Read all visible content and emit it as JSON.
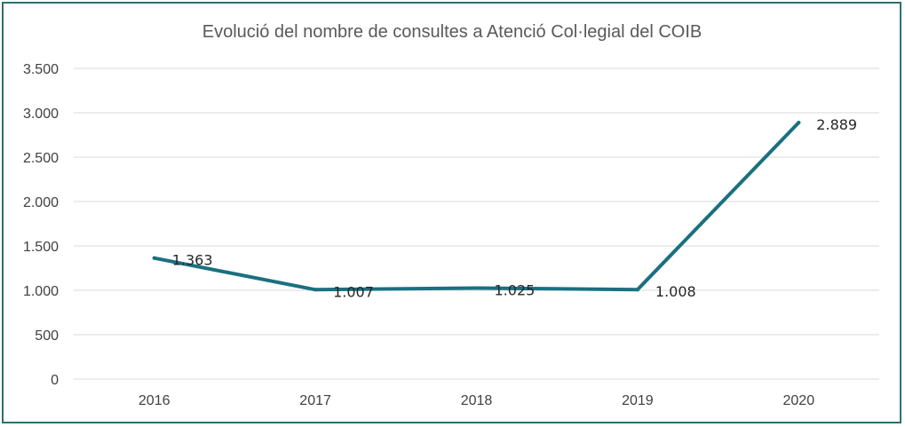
{
  "chart_data": {
    "type": "line",
    "title": "Evolució del nombre de consultes a Atenció Col·legial del COIB",
    "xlabel": "",
    "ylabel": "",
    "categories": [
      "2016",
      "2017",
      "2018",
      "2019",
      "2020"
    ],
    "series": [
      {
        "values": [
          1363,
          1007,
          1025,
          1008,
          2889
        ],
        "labels": [
          "1.363",
          "1.007",
          "1.025",
          "1.008",
          "2.889"
        ],
        "color": "#1a7080"
      }
    ],
    "ylim": [
      0,
      3500
    ],
    "yticks": [
      0,
      500,
      1000,
      1500,
      2000,
      2500,
      3000,
      3500
    ],
    "ytick_labels": [
      "0",
      "500",
      "1.000",
      "1.500",
      "2.000",
      "2.500",
      "3.000",
      "3.500"
    ],
    "grid": true,
    "legend": "none",
    "colors": {
      "border": "#2f6f73",
      "gridline": "#d9d9d9",
      "line": "#1a7080"
    }
  }
}
